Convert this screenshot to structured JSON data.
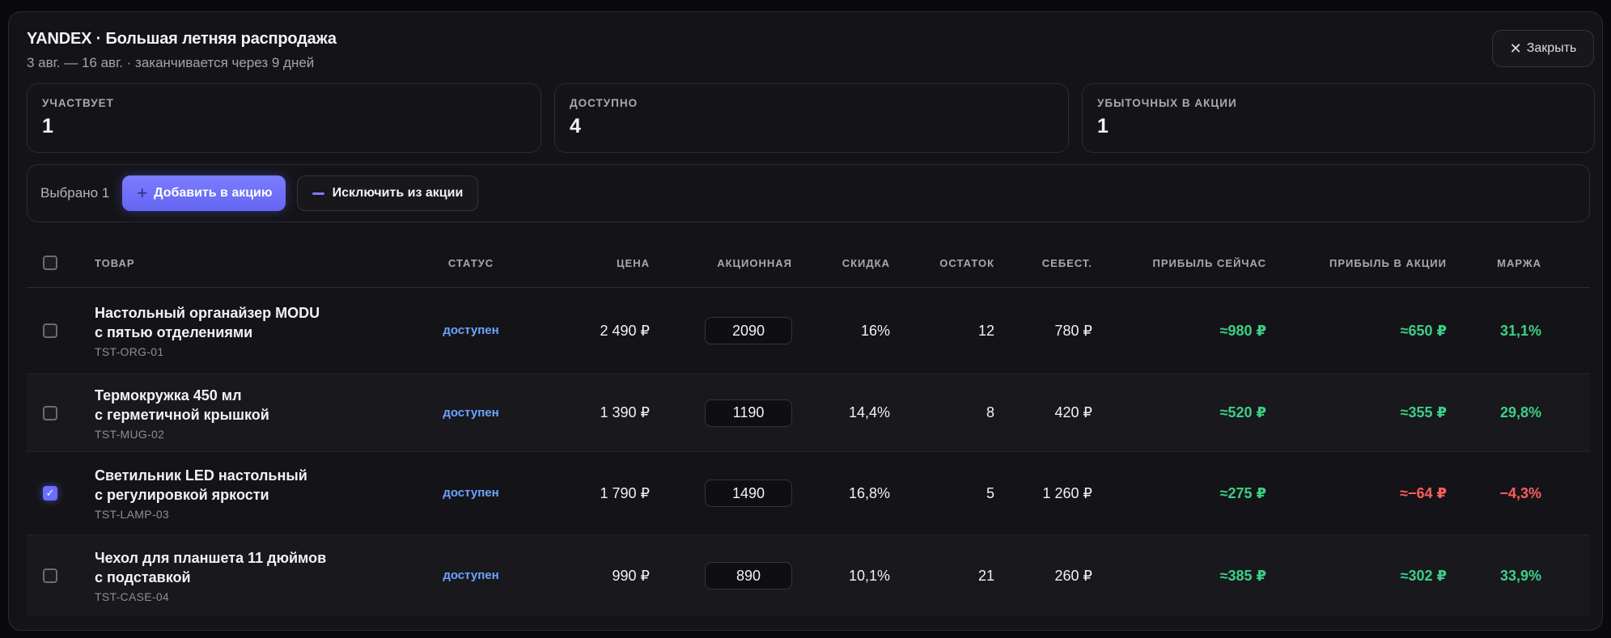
{
  "header": {
    "title": "YANDEX · Большая летняя распродажа",
    "subtitle": "3 авг. — 16 авг. · заканчивается через 9 дней",
    "close_label": "Закрыть"
  },
  "stats": [
    {
      "label": "УЧАСТВУЕТ",
      "value": "1"
    },
    {
      "label": "ДОСТУПНО",
      "value": "4"
    },
    {
      "label": "УБЫТОЧНЫХ В АКЦИИ",
      "value": "1"
    }
  ],
  "toolbar": {
    "selected": "Выбрано 1",
    "add_label": "Добавить в акцию",
    "exclude_label": "Исключить из акции"
  },
  "table": {
    "columns": [
      "ТОВАР",
      "СТАТУС",
      "ЦЕНА",
      "АКЦИОННАЯ",
      "СКИДКА",
      "ОСТАТОК",
      "СЕБЕСТ.",
      "ПРИБЫЛЬ СЕЙЧАС",
      "ПРИБЫЛЬ В АКЦИИ",
      "МАРЖА"
    ],
    "rows": [
      {
        "name1": "Настольный органайзер MODU",
        "name2": "с пятью отделениями",
        "sku": "TST-ORG-01",
        "status": "доступен",
        "price": "2 490 ₽",
        "promo": "2090",
        "discount": "16%",
        "stock": "12",
        "cost": "780 ₽",
        "profit_now": "≈980 ₽",
        "profit_promo": "≈650 ₽",
        "margin": "31,1%",
        "checked": false
      },
      {
        "name1": "Термокружка 450 мл",
        "name2": "с герметичной крышкой",
        "sku": "TST-MUG-02",
        "status": "доступен",
        "price": "1 390 ₽",
        "promo": "1190",
        "discount": "14,4%",
        "stock": "8",
        "cost": "420 ₽",
        "profit_now": "≈520 ₽",
        "profit_promo": "≈355 ₽",
        "margin": "29,8%",
        "checked": false
      },
      {
        "name1": "Светильник LED настольный",
        "name2": "с регулировкой яркости",
        "sku": "TST-LAMP-03",
        "status": "доступен",
        "price": "1 790 ₽",
        "promo": "1490",
        "discount": "16,8%",
        "stock": "5",
        "cost": "1 260 ₽",
        "profit_now": "≈275 ₽",
        "profit_promo": "≈−64 ₽",
        "margin": "−4,3%",
        "checked": true
      },
      {
        "name1": "Чехол для планшета 11 дюймов",
        "name2": "с подставкой",
        "sku": "TST-CASE-04",
        "status": "доступен",
        "price": "990 ₽",
        "promo": "890",
        "discount": "10,1%",
        "stock": "21",
        "cost": "260 ₽",
        "profit_now": "≈385 ₽",
        "profit_promo": "≈302 ₽",
        "margin": "33,9%",
        "checked": false
      }
    ]
  },
  "colors": {
    "accent": "#6c6eff",
    "status_link": "#6aa5ff",
    "positive": "#3ccf86",
    "negative": "#ff5d5d"
  },
  "icons": [
    "close-icon",
    "plus-icon",
    "minus-icon",
    "check-icon"
  ]
}
